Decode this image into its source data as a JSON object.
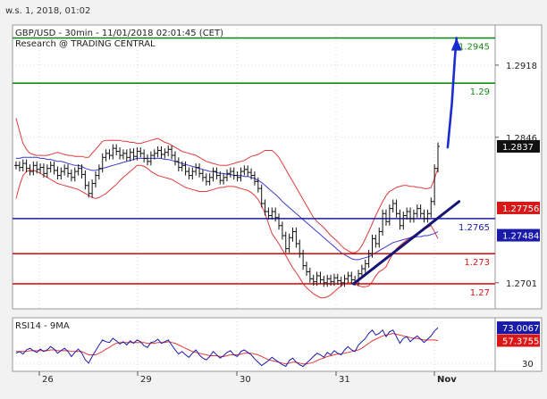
{
  "header": {
    "timestamp": "w.s. 1, 2018, 01:02"
  },
  "chart_data": [
    {
      "type": "line",
      "title": "GBP/USD - 30min - 11/01/2018 02:01:45 (CET)",
      "subtitle": "Research @ TRADING CENTRAL",
      "ylim": [
        1.2675,
        1.2958
      ],
      "y_ticks": [
        "1.2918",
        "1.2846",
        "1.2701"
      ],
      "y_tick_values": [
        1.2918,
        1.2846,
        1.2701
      ],
      "x_ticks": [
        "26",
        "29",
        "30",
        "31",
        "Nov"
      ],
      "levels": [
        {
          "label": "1.2945",
          "value": 1.2945,
          "color": "#1a8a1a"
        },
        {
          "label": "1.29",
          "value": 1.29,
          "color": "#1a8a1a"
        },
        {
          "label": "1.2765",
          "value": 1.2765,
          "color": "#1a1aa8"
        },
        {
          "label": "1.273",
          "value": 1.273,
          "color": "#d81818"
        },
        {
          "label": "1.27",
          "value": 1.27,
          "color": "#d81818"
        }
      ],
      "price_badges": [
        {
          "label": "1.2837",
          "value": 1.2837,
          "color": "#111111"
        },
        {
          "label": "1.27756",
          "value": 1.27756,
          "color": "#d81818"
        },
        {
          "label": "1.27484",
          "value": 1.27484,
          "color": "#1a1aa8"
        }
      ],
      "price": [
        1.2818,
        1.2816,
        1.282,
        1.2815,
        1.2812,
        1.2818,
        1.2814,
        1.2816,
        1.281,
        1.2815,
        1.2818,
        1.2813,
        1.2808,
        1.2812,
        1.2815,
        1.281,
        1.2806,
        1.2812,
        1.2815,
        1.2809,
        1.2798,
        1.279,
        1.28,
        1.2808,
        1.2815,
        1.2826,
        1.283,
        1.2828,
        1.2835,
        1.2832,
        1.2828,
        1.283,
        1.2826,
        1.2831,
        1.2827,
        1.2832,
        1.283,
        1.2825,
        1.2822,
        1.2828,
        1.283,
        1.2833,
        1.2829,
        1.2831,
        1.2834,
        1.2828,
        1.2822,
        1.2816,
        1.2818,
        1.2812,
        1.2808,
        1.2812,
        1.2816,
        1.281,
        1.2806,
        1.2802,
        1.2806,
        1.2812,
        1.2808,
        1.2803,
        1.2806,
        1.281,
        1.2812,
        1.2808,
        1.2806,
        1.2812,
        1.2814,
        1.2811,
        1.2808,
        1.2802,
        1.2795,
        1.278,
        1.2772,
        1.2768,
        1.2772,
        1.2766,
        1.2758,
        1.2748,
        1.2735,
        1.2746,
        1.2752,
        1.274,
        1.273,
        1.2718,
        1.2712,
        1.2705,
        1.2702,
        1.2708,
        1.2704,
        1.2701,
        1.2705,
        1.2702,
        1.2706,
        1.2703,
        1.2701,
        1.2705,
        1.2708,
        1.2704,
        1.2702,
        1.271,
        1.2715,
        1.272,
        1.273,
        1.2745,
        1.274,
        1.2752,
        1.277,
        1.2762,
        1.2775,
        1.278,
        1.277,
        1.2758,
        1.2768,
        1.2772,
        1.2765,
        1.277,
        1.2775,
        1.277,
        1.2765,
        1.277,
        1.2782,
        1.2815,
        1.2837
      ],
      "ma": [
        1.2825,
        1.2825,
        1.2826,
        1.2826,
        1.2826,
        1.2826,
        1.2826,
        1.2825,
        1.2825,
        1.2824,
        1.2824,
        1.2823,
        1.2822,
        1.2822,
        1.2821,
        1.282,
        1.2819,
        1.2818,
        1.2818,
        1.2817,
        1.2815,
        1.2814,
        1.2813,
        1.2813,
        1.2814,
        1.2815,
        1.2816,
        1.2817,
        1.2818,
        1.2819,
        1.282,
        1.2821,
        1.2822,
        1.2823,
        1.2824,
        1.2825,
        1.2825,
        1.2825,
        1.2825,
        1.2825,
        1.2825,
        1.2825,
        1.2825,
        1.2824,
        1.2824,
        1.2823,
        1.2822,
        1.2821,
        1.282,
        1.2819,
        1.2818,
        1.2817,
        1.2816,
        1.2815,
        1.2814,
        1.2813,
        1.2812,
        1.2812,
        1.2811,
        1.281,
        1.281,
        1.2809,
        1.2809,
        1.2808,
        1.2808,
        1.2808,
        1.2807,
        1.2807,
        1.2806,
        1.2805,
        1.2803,
        1.2801,
        1.2798,
        1.2795,
        1.2792,
        1.2789,
        1.2786,
        1.2782,
        1.2779,
        1.2776,
        1.2773,
        1.277,
        1.2767,
        1.2764,
        1.2761,
        1.2758,
        1.2755,
        1.2752,
        1.2749,
        1.2746,
        1.2743,
        1.274,
        1.2737,
        1.2734,
        1.2731,
        1.2729,
        1.2727,
        1.2725,
        1.2724,
        1.2724,
        1.2725,
        1.2726,
        1.2727,
        1.2729,
        1.2731,
        1.2733,
        1.2735,
        1.2737,
        1.2739,
        1.2741,
        1.2742,
        1.2743,
        1.2744,
        1.2745,
        1.2746,
        1.2746,
        1.2747,
        1.2747,
        1.2748,
        1.2748,
        1.2749,
        1.275,
        1.2752
      ],
      "band_upper": [
        1.2865,
        1.2852,
        1.284,
        1.2834,
        1.283,
        1.2829,
        1.2828,
        1.2828,
        1.2828,
        1.2828,
        1.2829,
        1.283,
        1.2831,
        1.283,
        1.2829,
        1.2828,
        1.2828,
        1.2827,
        1.2827,
        1.2827,
        1.2826,
        1.2826,
        1.283,
        1.2834,
        1.2838,
        1.2842,
        1.2843,
        1.2843,
        1.2843,
        1.2843,
        1.2843,
        1.2842,
        1.2842,
        1.2841,
        1.2841,
        1.284,
        1.284,
        1.2841,
        1.2842,
        1.2843,
        1.2844,
        1.2845,
        1.2843,
        1.2841,
        1.284,
        1.2838,
        1.2836,
        1.2834,
        1.2832,
        1.2831,
        1.283,
        1.2829,
        1.2828,
        1.2826,
        1.2824,
        1.2822,
        1.2821,
        1.282,
        1.2819,
        1.2818,
        1.2818,
        1.2818,
        1.2819,
        1.282,
        1.2821,
        1.2822,
        1.2823,
        1.2825,
        1.2827,
        1.2828,
        1.2829,
        1.2831,
        1.2833,
        1.2833,
        1.2833,
        1.283,
        1.2826,
        1.282,
        1.2814,
        1.2808,
        1.2802,
        1.2796,
        1.279,
        1.2784,
        1.2778,
        1.2772,
        1.2766,
        1.2762,
        1.2759,
        1.2756,
        1.2752,
        1.2748,
        1.2745,
        1.2742,
        1.2738,
        1.2735,
        1.2733,
        1.2731,
        1.2731,
        1.2733,
        1.2738,
        1.2745,
        1.2752,
        1.276,
        1.2768,
        1.2775,
        1.2782,
        1.2788,
        1.2792,
        1.2794,
        1.2796,
        1.2797,
        1.2798,
        1.2798,
        1.2797,
        1.2797,
        1.2796,
        1.2796,
        1.2795,
        1.2795,
        1.2796,
        1.2805,
        1.2815
      ],
      "band_lower": [
        1.2785,
        1.2798,
        1.2808,
        1.2812,
        1.2813,
        1.2813,
        1.2812,
        1.281,
        1.2808,
        1.2806,
        1.2804,
        1.2802,
        1.28,
        1.2799,
        1.2798,
        1.2797,
        1.2796,
        1.2795,
        1.2794,
        1.2792,
        1.279,
        1.2788,
        1.2786,
        1.2785,
        1.2786,
        1.2788,
        1.279,
        1.2793,
        1.2796,
        1.2799,
        1.2803,
        1.2806,
        1.2809,
        1.2812,
        1.2815,
        1.2818,
        1.2818,
        1.2817,
        1.2815,
        1.2812,
        1.281,
        1.2808,
        1.2807,
        1.2806,
        1.2805,
        1.2804,
        1.2802,
        1.28,
        1.2798,
        1.2796,
        1.2795,
        1.2794,
        1.2793,
        1.2792,
        1.2792,
        1.2792,
        1.2793,
        1.2794,
        1.2795,
        1.2796,
        1.2796,
        1.2797,
        1.2797,
        1.2797,
        1.2796,
        1.2795,
        1.2794,
        1.2793,
        1.2791,
        1.2788,
        1.2784,
        1.2778,
        1.277,
        1.276,
        1.275,
        1.2745,
        1.274,
        1.2734,
        1.2728,
        1.2722,
        1.2716,
        1.2711,
        1.2706,
        1.27,
        1.2696,
        1.2693,
        1.269,
        1.2688,
        1.2686,
        1.2686,
        1.2687,
        1.2689,
        1.2692,
        1.2695,
        1.2698,
        1.27,
        1.2701,
        1.2701,
        1.27,
        1.2698,
        1.2697,
        1.2697,
        1.2698,
        1.2702,
        1.2708,
        1.2712,
        1.2714,
        1.2717,
        1.2724,
        1.273,
        1.2735,
        1.2738,
        1.2741,
        1.2744,
        1.2746,
        1.2748,
        1.275,
        1.2752,
        1.2754,
        1.2756,
        1.2758,
        1.2752,
        1.2745
      ],
      "trendline": {
        "from": [
          0.8,
          1.27
        ],
        "to": [
          1.05,
          1.2782
        ]
      },
      "projection": [
        [
          1.023,
          1.2836
        ],
        [
          1.033,
          1.288
        ],
        [
          1.04,
          1.2925
        ],
        [
          1.044,
          1.2945
        ]
      ]
    },
    {
      "type": "line",
      "title": "RSI14 - 9MA",
      "ylim": [
        20,
        85
      ],
      "y_ticks": [
        "30"
      ],
      "y_tick_values": [
        30
      ],
      "badges": [
        {
          "label": "73.0067",
          "value": 73.0067,
          "color": "#1a1aa8"
        },
        {
          "label": "57.3755",
          "value": 57.3755,
          "color": "#d81818"
        }
      ],
      "rsi": [
        42,
        44,
        41,
        46,
        48,
        45,
        43,
        47,
        44,
        46,
        50,
        47,
        42,
        45,
        48,
        44,
        38,
        43,
        47,
        42,
        34,
        30,
        38,
        45,
        52,
        58,
        56,
        55,
        60,
        57,
        53,
        56,
        52,
        57,
        54,
        58,
        56,
        51,
        49,
        55,
        56,
        59,
        54,
        56,
        58,
        52,
        46,
        41,
        44,
        40,
        37,
        42,
        46,
        40,
        36,
        34,
        38,
        44,
        40,
        36,
        39,
        43,
        45,
        40,
        38,
        44,
        46,
        43,
        40,
        35,
        31,
        27,
        30,
        33,
        37,
        34,
        31,
        28,
        26,
        33,
        36,
        31,
        28,
        26,
        30,
        34,
        38,
        42,
        40,
        37,
        43,
        40,
        45,
        42,
        40,
        46,
        50,
        46,
        44,
        52,
        56,
        60,
        66,
        70,
        64,
        66,
        70,
        62,
        68,
        70,
        62,
        54,
        60,
        62,
        56,
        60,
        63,
        59,
        55,
        59,
        63,
        69,
        73
      ],
      "rsi_ma": [
        44,
        44,
        44,
        44,
        45,
        45,
        45,
        45,
        45,
        45,
        46,
        46,
        45,
        45,
        45,
        45,
        44,
        44,
        44,
        44,
        42,
        40,
        40,
        40,
        42,
        44,
        47,
        49,
        52,
        54,
        55,
        55,
        55,
        55,
        55,
        55,
        55,
        55,
        54,
        54,
        54,
        55,
        55,
        55,
        56,
        55,
        54,
        52,
        50,
        48,
        46,
        44,
        43,
        42,
        41,
        40,
        39,
        39,
        39,
        38,
        38,
        39,
        40,
        40,
        40,
        41,
        42,
        42,
        42,
        41,
        40,
        38,
        36,
        34,
        33,
        32,
        31,
        30,
        29,
        30,
        31,
        31,
        30,
        29,
        29,
        30,
        31,
        33,
        35,
        36,
        38,
        39,
        40,
        41,
        41,
        42,
        43,
        44,
        45,
        46,
        48,
        51,
        54,
        57,
        59,
        61,
        63,
        64,
        65,
        66,
        65,
        64,
        63,
        62,
        61,
        60,
        60,
        59,
        58,
        58,
        58,
        58,
        57.4
      ]
    }
  ]
}
